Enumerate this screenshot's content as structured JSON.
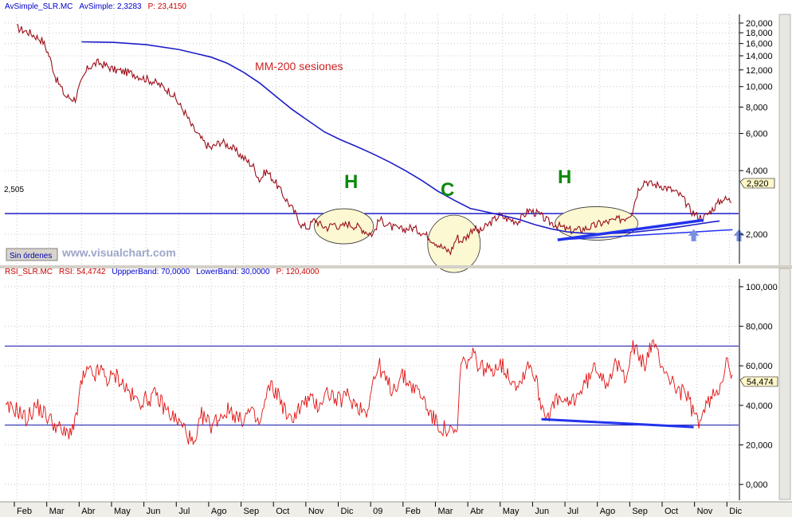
{
  "colors": {
    "price": "#9a0f1a",
    "ma": "#1e1ec8",
    "rsi": "#e01010",
    "band": "#1010aa",
    "trend": "#2233ee",
    "label_green": "#0a8a0a",
    "ellipse_fill": "#fbf8d2",
    "arrow": "#7a8fe0",
    "title_blue": "#0000cc",
    "title_red": "#cc0000",
    "watermark": "#9da6c8"
  },
  "price_panel": {
    "title_parts": [
      {
        "text": "AvSimple_SLR.MC",
        "color": "#0000cc"
      },
      {
        "text": "AvSimple: 2,3283",
        "color": "#0000cc"
      },
      {
        "text": "P: 23,4150",
        "color": "#cc0000"
      }
    ],
    "ma_label": "MM-200 sesiones",
    "pattern_labels": [
      "H",
      "C",
      "H"
    ],
    "level_label": "2,505",
    "last_value": "2,920",
    "orders_button": "Sin órdenes",
    "watermark": "www.visualchart.com"
  },
  "rsi_panel": {
    "title_parts": [
      {
        "text": "RSI_SLR.MC",
        "color": "#cc0000"
      },
      {
        "text": "RSI: 54,4742",
        "color": "#cc0000"
      },
      {
        "text": "UppperBand: 70,0000",
        "color": "#0000cc"
      },
      {
        "text": "LowerBand: 30,0000",
        "color": "#0000cc"
      },
      {
        "text": "P: 120,4000",
        "color": "#cc0000"
      }
    ],
    "last_value": "54,474"
  },
  "chart_data": [
    {
      "type": "line",
      "scale": "log",
      "x_labels": [
        "Feb",
        "Mar",
        "Abr",
        "May",
        "Jun",
        "Jul",
        "Ago",
        "Sep",
        "Oct",
        "Nov",
        "Dic",
        "09",
        "Feb",
        "Mar",
        "Abr",
        "May",
        "Jun",
        "Jul",
        "Ago",
        "Sep",
        "Oct",
        "Nov",
        "Dic"
      ],
      "y_ticks": [
        2000,
        4000,
        6000,
        8000,
        10000,
        12000,
        14000,
        16000,
        18000,
        20000
      ],
      "y_tick_labels": [
        "2,000",
        "4,000",
        "6,000",
        "8,000",
        "10,000",
        "12,000",
        "14,000",
        "16,000",
        "18,000",
        "20,000"
      ],
      "ylim": [
        1450,
        22000
      ],
      "grid": true,
      "horizontal_level": 2505,
      "series": [
        {
          "name": "AvSimple_SLR.MC",
          "points": [
            [
              0,
              19000
            ],
            [
              0.4,
              18000
            ],
            [
              0.8,
              16500
            ],
            [
              1,
              14000
            ],
            [
              1.2,
              11000
            ],
            [
              1.5,
              9000
            ],
            [
              1.8,
              8700
            ],
            [
              2,
              10500
            ],
            [
              2.2,
              12300
            ],
            [
              2.5,
              13000
            ],
            [
              2.8,
              12500
            ],
            [
              3,
              12000
            ],
            [
              3.3,
              11800
            ],
            [
              3.6,
              11500
            ],
            [
              3.9,
              11000
            ],
            [
              4.2,
              10600
            ],
            [
              4.5,
              10000
            ],
            [
              4.8,
              9300
            ],
            [
              5,
              8300
            ],
            [
              5.2,
              7500
            ],
            [
              5.4,
              6500
            ],
            [
              5.6,
              5900
            ],
            [
              5.8,
              5400
            ],
            [
              6,
              5100
            ],
            [
              6.3,
              5500
            ],
            [
              6.6,
              5200
            ],
            [
              7,
              4600
            ],
            [
              7.3,
              4200
            ],
            [
              7.5,
              3600
            ],
            [
              7.7,
              4000
            ],
            [
              8,
              3500
            ],
            [
              8.2,
              3100
            ],
            [
              8.4,
              2800
            ],
            [
              8.6,
              2500
            ],
            [
              8.8,
              2200
            ],
            [
              9,
              2150
            ],
            [
              9.2,
              2350
            ],
            [
              9.4,
              2200
            ],
            [
              9.6,
              2150
            ],
            [
              9.8,
              2250
            ],
            [
              10,
              2150
            ],
            [
              10.2,
              2250
            ],
            [
              10.4,
              2200
            ],
            [
              10.6,
              2150
            ],
            [
              10.8,
              2050
            ],
            [
              11,
              2000
            ],
            [
              11.2,
              2350
            ],
            [
              11.4,
              2250
            ],
            [
              11.6,
              2150
            ],
            [
              11.9,
              2100
            ],
            [
              12.2,
              2150
            ],
            [
              12.5,
              2050
            ],
            [
              12.8,
              1900
            ],
            [
              13,
              1800
            ],
            [
              13.2,
              1700
            ],
            [
              13.4,
              1650
            ],
            [
              13.6,
              1950
            ],
            [
              13.7,
              1850
            ],
            [
              13.9,
              1950
            ],
            [
              14.1,
              2150
            ],
            [
              14.3,
              2050
            ],
            [
              14.6,
              2250
            ],
            [
              14.9,
              2450
            ],
            [
              15.2,
              2350
            ],
            [
              15.5,
              2300
            ],
            [
              15.8,
              2600
            ],
            [
              16.1,
              2500
            ],
            [
              16.4,
              2300
            ],
            [
              16.7,
              2200
            ],
            [
              17,
              2100
            ],
            [
              17.2,
              2080
            ],
            [
              17.5,
              2120
            ],
            [
              17.8,
              2180
            ],
            [
              18,
              2250
            ],
            [
              18.2,
              2280
            ],
            [
              18.5,
              2330
            ],
            [
              18.8,
              2400
            ],
            [
              19,
              2550
            ],
            [
              19.2,
              3300
            ],
            [
              19.4,
              3600
            ],
            [
              19.6,
              3450
            ],
            [
              19.9,
              3400
            ],
            [
              20.2,
              3250
            ],
            [
              20.5,
              3050
            ],
            [
              20.8,
              2600
            ],
            [
              21,
              2450
            ],
            [
              21.2,
              2380
            ],
            [
              21.4,
              2550
            ],
            [
              21.6,
              2750
            ],
            [
              21.8,
              2950
            ],
            [
              22,
              2900
            ],
            [
              22.1,
              2880
            ]
          ]
        },
        {
          "name": "MM-200 sesiones",
          "points": [
            [
              2,
              16300
            ],
            [
              3,
              16200
            ],
            [
              4,
              15800
            ],
            [
              5,
              15000
            ],
            [
              6,
              13800
            ],
            [
              6.5,
              12900
            ],
            [
              7,
              11700
            ],
            [
              7.5,
              10400
            ],
            [
              8,
              9000
            ],
            [
              8.5,
              7800
            ],
            [
              9,
              6900
            ],
            [
              9.5,
              6100
            ],
            [
              10,
              5600
            ],
            [
              10.5,
              5200
            ],
            [
              11,
              4800
            ],
            [
              11.5,
              4400
            ],
            [
              12,
              4000
            ],
            [
              12.5,
              3600
            ],
            [
              13,
              3200
            ],
            [
              13.5,
              2900
            ],
            [
              14,
              2650
            ],
            [
              14.5,
              2550
            ],
            [
              15,
              2450
            ],
            [
              15.5,
              2350
            ],
            [
              16,
              2220
            ],
            [
              16.5,
              2120
            ],
            [
              17,
              2050
            ],
            [
              17.5,
              2020
            ],
            [
              18,
              2010
            ],
            [
              18.5,
              2020
            ],
            [
              19,
              2040
            ],
            [
              19.5,
              2080
            ],
            [
              20,
              2120
            ],
            [
              20.5,
              2170
            ],
            [
              21,
              2230
            ],
            [
              21.5,
              2290
            ],
            [
              21.7,
              2310
            ]
          ]
        }
      ]
    },
    {
      "type": "line",
      "x_labels": [
        "Feb",
        "Mar",
        "Abr",
        "May",
        "Jun",
        "Jul",
        "Ago",
        "Sep",
        "Oct",
        "Nov",
        "Dic",
        "09",
        "Feb",
        "Mar",
        "Abr",
        "May",
        "Jun",
        "Jul",
        "Ago",
        "Sep",
        "Oct",
        "Nov",
        "Dic"
      ],
      "y_ticks": [
        0,
        20,
        40,
        60,
        80,
        100
      ],
      "y_tick_labels": [
        "0,000",
        "20,000",
        "40,000",
        "60,000",
        "80,000",
        "100,000"
      ],
      "ylim": [
        -8,
        104
      ],
      "grid": true,
      "bands": [
        70,
        30
      ],
      "series": [
        {
          "name": "RSI_SLR.MC",
          "points": [
            [
              0,
              38
            ],
            [
              0.3,
              33
            ],
            [
              0.6,
              40
            ],
            [
              0.9,
              35
            ],
            [
              1.2,
              30
            ],
            [
              1.5,
              25
            ],
            [
              1.8,
              30
            ],
            [
              2,
              52
            ],
            [
              2.2,
              57
            ],
            [
              2.4,
              55
            ],
            [
              2.6,
              58
            ],
            [
              2.8,
              53
            ],
            [
              3.1,
              55
            ],
            [
              3.4,
              48
            ],
            [
              3.7,
              42
            ],
            [
              4,
              43
            ],
            [
              4.3,
              45
            ],
            [
              4.6,
              38
            ],
            [
              4.9,
              33
            ],
            [
              5.2,
              28
            ],
            [
              5.5,
              18
            ],
            [
              5.7,
              35
            ],
            [
              6,
              30
            ],
            [
              6.3,
              35
            ],
            [
              6.6,
              38
            ],
            [
              6.9,
              32
            ],
            [
              7.2,
              37
            ],
            [
              7.5,
              30
            ],
            [
              7.8,
              50
            ],
            [
              8.1,
              45
            ],
            [
              8.4,
              32
            ],
            [
              8.7,
              38
            ],
            [
              9,
              43
            ],
            [
              9.3,
              40
            ],
            [
              9.6,
              47
            ],
            [
              9.9,
              42
            ],
            [
              10.2,
              45
            ],
            [
              10.5,
              40
            ],
            [
              10.8,
              37
            ],
            [
              11,
              52
            ],
            [
              11.2,
              60
            ],
            [
              11.4,
              52
            ],
            [
              11.6,
              48
            ],
            [
              11.9,
              55
            ],
            [
              12.2,
              50
            ],
            [
              12.5,
              45
            ],
            [
              12.8,
              35
            ],
            [
              13,
              30
            ],
            [
              13.3,
              27
            ],
            [
              13.6,
              25
            ],
            [
              13.7,
              60
            ],
            [
              13.9,
              62
            ],
            [
              14.1,
              65
            ],
            [
              14.3,
              60
            ],
            [
              14.6,
              57
            ],
            [
              14.9,
              62
            ],
            [
              15.2,
              55
            ],
            [
              15.5,
              50
            ],
            [
              15.8,
              62
            ],
            [
              16,
              55
            ],
            [
              16.2,
              40
            ],
            [
              16.4,
              35
            ],
            [
              16.7,
              43
            ],
            [
              17,
              40
            ],
            [
              17.3,
              45
            ],
            [
              17.6,
              52
            ],
            [
              17.9,
              60
            ],
            [
              18.2,
              52
            ],
            [
              18.5,
              60
            ],
            [
              18.8,
              55
            ],
            [
              19,
              70
            ],
            [
              19.2,
              65
            ],
            [
              19.4,
              60
            ],
            [
              19.6,
              72
            ],
            [
              19.8,
              65
            ],
            [
              20.1,
              55
            ],
            [
              20.4,
              48
            ],
            [
              20.7,
              45
            ],
            [
              20.9,
              35
            ],
            [
              21.1,
              32
            ],
            [
              21.3,
              40
            ],
            [
              21.5,
              45
            ],
            [
              21.7,
              50
            ],
            [
              21.9,
              62
            ],
            [
              22,
              58
            ],
            [
              22.1,
              54
            ]
          ]
        }
      ]
    }
  ]
}
